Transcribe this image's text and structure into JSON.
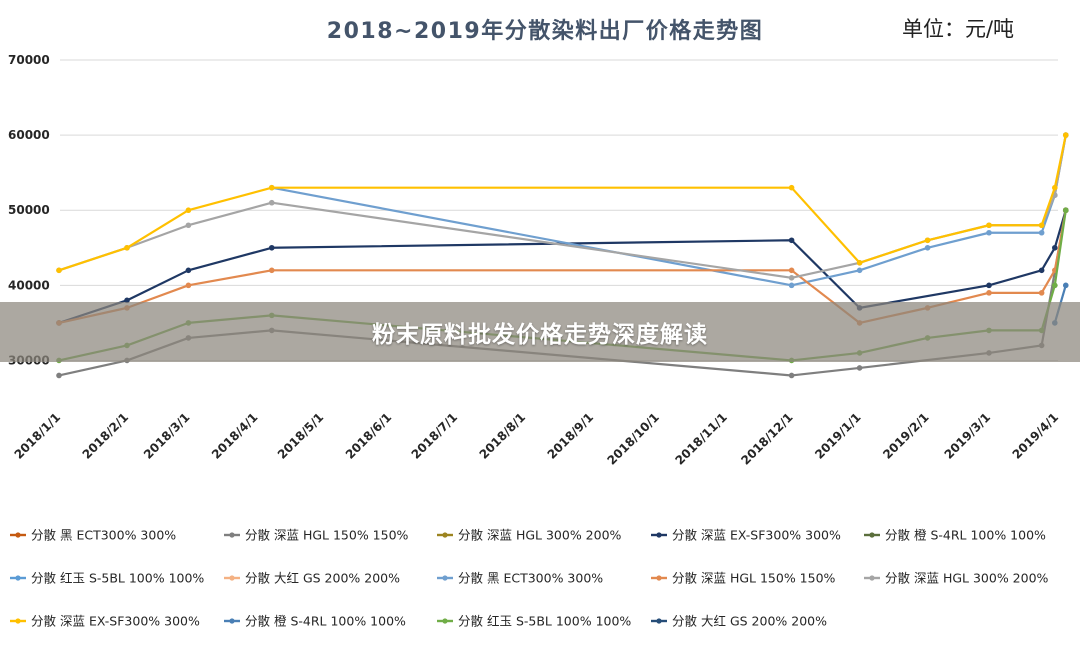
{
  "overlay": {
    "text": "粉末原料批发价格走势深度解读"
  },
  "chart_data": {
    "type": "line",
    "title": "2018~2019年分散染料出厂价格走势图",
    "unit_label": "单位：元/吨",
    "ylim": [
      25000,
      70000
    ],
    "y_ticks": [
      30000,
      40000,
      50000,
      60000,
      70000
    ],
    "grid": true,
    "legend_position": "bottom",
    "x_ticks": [
      "2018/1/1",
      "2018/2/1",
      "2018/3/1",
      "2018/4/1",
      "2018/5/1",
      "2018/6/1",
      "2018/7/1",
      "2018/8/1",
      "2018/9/1",
      "2018/10/1",
      "2018/11/1",
      "2018/12/1",
      "2019/1/1",
      "2019/2/1",
      "2019/3/1",
      "2019/4/1"
    ],
    "x_start": "2018/1/1",
    "series": [
      {
        "name": "分散 黑 ECT300% 300%",
        "color": "#c55a11",
        "points": []
      },
      {
        "name": "分散 深蓝 HGL 150% 150%",
        "color": "#7f7f7f",
        "points": [
          [
            "2018/1/1",
            28000
          ],
          [
            "2018/2/1",
            30000
          ],
          [
            "2018/3/1",
            33000
          ],
          [
            "2018/4/8",
            34000
          ],
          [
            "2018/12/1",
            28000
          ],
          [
            "2019/1/1",
            29000
          ],
          [
            "2019/3/1",
            31000
          ],
          [
            "2019/3/25",
            32000
          ],
          [
            "2019/4/5",
            50000
          ]
        ]
      },
      {
        "name": "分散 深蓝 HGL 300% 200%",
        "color": "#9c8420",
        "points": []
      },
      {
        "name": "分散 深蓝 EX-SF300% 300%",
        "color": "#1f3864",
        "points": [
          [
            "2018/1/1",
            35000
          ],
          [
            "2018/2/1",
            38000
          ],
          [
            "2018/3/1",
            42000
          ],
          [
            "2018/4/8",
            45000
          ],
          [
            "2018/12/1",
            46000
          ],
          [
            "2019/1/1",
            37000
          ],
          [
            "2019/3/1",
            40000
          ],
          [
            "2019/3/25",
            42000
          ],
          [
            "2019/3/31",
            45000
          ],
          [
            "2019/4/5",
            50000
          ]
        ]
      },
      {
        "name": "分散 橙 S-4RL 100% 100%",
        "color": "#5b6e3c",
        "points": []
      },
      {
        "name": "分散 红玉 S-5BL 100% 100%",
        "color": "#5b9bd5",
        "points": []
      },
      {
        "name": "分散 大红 GS 200% 200%",
        "color": "#f4b183",
        "points": []
      },
      {
        "name": "分散 黑 ECT300% 300%",
        "color": "#6f9fcf",
        "points": [
          [
            "2018/4/8",
            53000
          ],
          [
            "2018/12/1",
            40000
          ],
          [
            "2019/1/1",
            42000
          ],
          [
            "2019/2/1",
            45000
          ],
          [
            "2019/3/1",
            47000
          ],
          [
            "2019/3/25",
            47000
          ],
          [
            "2019/3/31",
            52000
          ],
          [
            "2019/4/5",
            60000
          ]
        ]
      },
      {
        "name": "分散 深蓝 HGL 150% 150%",
        "color": "#e2894f",
        "points": [
          [
            "2018/1/1",
            35000
          ],
          [
            "2018/2/1",
            37000
          ],
          [
            "2018/3/1",
            40000
          ],
          [
            "2018/4/8",
            42000
          ],
          [
            "2018/12/1",
            42000
          ],
          [
            "2019/1/1",
            35000
          ],
          [
            "2019/2/1",
            37000
          ],
          [
            "2019/3/1",
            39000
          ],
          [
            "2019/3/25",
            39000
          ],
          [
            "2019/3/31",
            42000
          ],
          [
            "2019/4/5",
            50000
          ]
        ]
      },
      {
        "name": "分散 深蓝 HGL 300% 200%",
        "color": "#a5a5a5",
        "points": [
          [
            "2018/1/1",
            42000
          ],
          [
            "2018/2/1",
            45000
          ],
          [
            "2018/3/1",
            48000
          ],
          [
            "2018/4/8",
            51000
          ],
          [
            "2018/12/1",
            41000
          ],
          [
            "2019/1/1",
            43000
          ],
          [
            "2019/2/1",
            46000
          ],
          [
            "2019/3/1",
            48000
          ],
          [
            "2019/3/25",
            48000
          ],
          [
            "2019/3/31",
            52000
          ],
          [
            "2019/4/5",
            60000
          ]
        ]
      },
      {
        "name": "分散 深蓝 EX-SF300% 300%",
        "color": "#ffc000",
        "points": [
          [
            "2018/1/1",
            42000
          ],
          [
            "2018/2/1",
            45000
          ],
          [
            "2018/3/1",
            50000
          ],
          [
            "2018/4/8",
            53000
          ],
          [
            "2018/12/1",
            53000
          ],
          [
            "2019/1/1",
            43000
          ],
          [
            "2019/2/1",
            46000
          ],
          [
            "2019/3/1",
            48000
          ],
          [
            "2019/3/25",
            48000
          ],
          [
            "2019/3/31",
            53000
          ],
          [
            "2019/4/5",
            60000
          ]
        ]
      },
      {
        "name": "分散 橙 S-4RL 100% 100%",
        "color": "#4a7fb5",
        "points": [
          [
            "2019/3/31",
            35000
          ],
          [
            "2019/4/5",
            40000
          ]
        ]
      },
      {
        "name": "分散 红玉 S-5BL 100% 100%",
        "color": "#70ad47",
        "points": [
          [
            "2018/1/1",
            30000
          ],
          [
            "2018/2/1",
            32000
          ],
          [
            "2018/3/1",
            35000
          ],
          [
            "2018/4/8",
            36000
          ],
          [
            "2018/12/1",
            30000
          ],
          [
            "2019/1/1",
            31000
          ],
          [
            "2019/2/1",
            33000
          ],
          [
            "2019/3/1",
            34000
          ],
          [
            "2019/3/25",
            34000
          ],
          [
            "2019/3/31",
            40000
          ],
          [
            "2019/4/5",
            50000
          ]
        ]
      },
      {
        "name": "分散 大红 GS 200% 200%",
        "color": "#264d78",
        "points": []
      }
    ]
  }
}
